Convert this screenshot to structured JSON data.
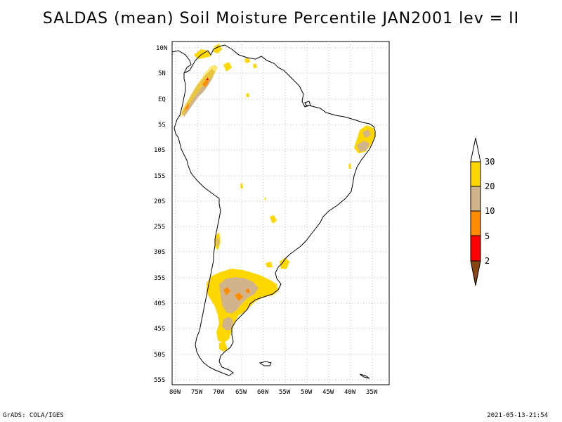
{
  "title": "SALDAS (mean) Soil Moisture Percentile JAN2001 lev = II",
  "footer": {
    "left": "GrADS: COLA/IGES",
    "right": "2021-05-13-21:54"
  },
  "map": {
    "projection": "lat-lon",
    "lat_ticks": [
      "10N",
      "5N",
      "EQ",
      "5S",
      "10S",
      "15S",
      "20S",
      "25S",
      "30S",
      "35S",
      "40S",
      "45S",
      "50S",
      "55S"
    ],
    "lon_ticks": [
      "80W",
      "75W",
      "70W",
      "65W",
      "60W",
      "55W",
      "50W",
      "45W",
      "40W",
      "35W"
    ],
    "grid": true,
    "region": "South America"
  },
  "legend": {
    "labels": [
      "2",
      "5",
      "10",
      "20",
      "30"
    ],
    "colors": [
      "#8b4513",
      "#ff0000",
      "#ff8c00",
      "#d2b48c",
      "#ffd700",
      "#ffffff"
    ]
  },
  "colors": {
    "bin_30_plus": "#ffffff",
    "bin_20_30": "#ffd700",
    "bin_10_20": "#d2b48c",
    "bin_5_10": "#ff8c00",
    "bin_2_5": "#ff0000",
    "bin_below_2": "#8b4513"
  }
}
